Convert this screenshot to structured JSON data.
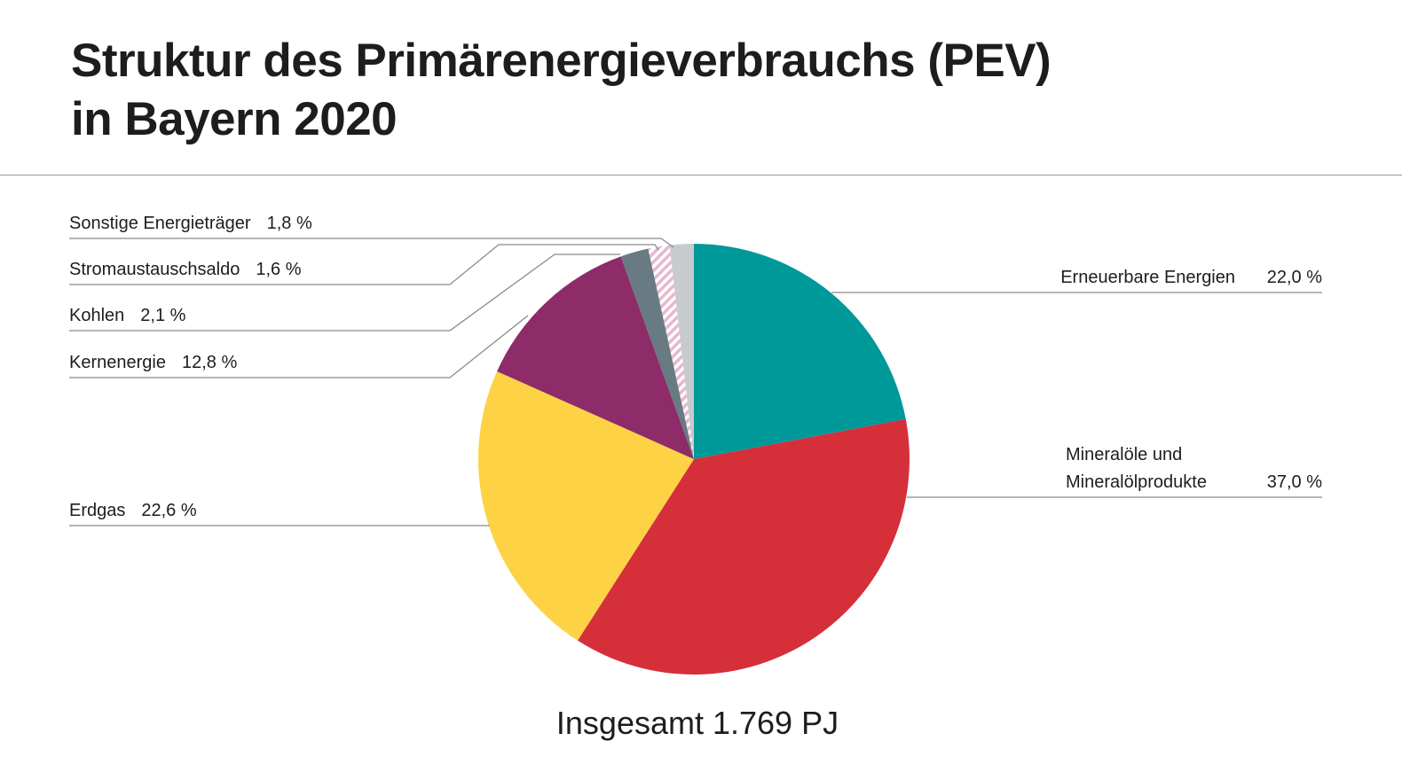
{
  "title_line1": "Struktur des Primärenergieverbrauchs (PEV)",
  "title_line2": "in Bayern 2020",
  "chart_data": {
    "type": "pie",
    "title": "Struktur des Primärenergieverbrauchs (PEV) in Bayern 2020",
    "total_label": "Insgesamt 1.769 PJ",
    "slices": [
      {
        "label": "Erneuerbare Energien",
        "label_lines": [
          "Erneuerbare Energien"
        ],
        "value": 22.0,
        "value_label": "22,0 %",
        "color": "#009999",
        "side": "right"
      },
      {
        "label": "Mineralöle und Mineralölprodukte",
        "label_lines": [
          "Mineralöle und",
          "Mineralölprodukte"
        ],
        "value": 37.0,
        "value_label": "37,0 %",
        "color": "#d52f3a",
        "side": "right"
      },
      {
        "label": "Erdgas",
        "label_lines": [
          "Erdgas"
        ],
        "value": 22.6,
        "value_label": "22,6 %",
        "color": "#fdd245",
        "side": "left"
      },
      {
        "label": "Kernenergie",
        "label_lines": [
          "Kernenergie"
        ],
        "value": 12.8,
        "value_label": "12,8 %",
        "color": "#8d2c69",
        "side": "left"
      },
      {
        "label": "Kohlen",
        "label_lines": [
          "Kohlen"
        ],
        "value": 2.1,
        "value_label": "2,1 %",
        "color": "#687a82",
        "side": "left"
      },
      {
        "label": "Stromaustauschsaldo",
        "label_lines": [
          "Stromaustauschsaldo"
        ],
        "value": 1.6,
        "value_label": "1,6 %",
        "color": "#e8b6cf",
        "pattern": "hatched",
        "side": "left"
      },
      {
        "label": "Sonstige Energieträger",
        "label_lines": [
          "Sonstige Energieträger"
        ],
        "value": 1.8,
        "value_label": "1,8 %",
        "color": "#c7cbcd",
        "side": "left"
      }
    ]
  }
}
